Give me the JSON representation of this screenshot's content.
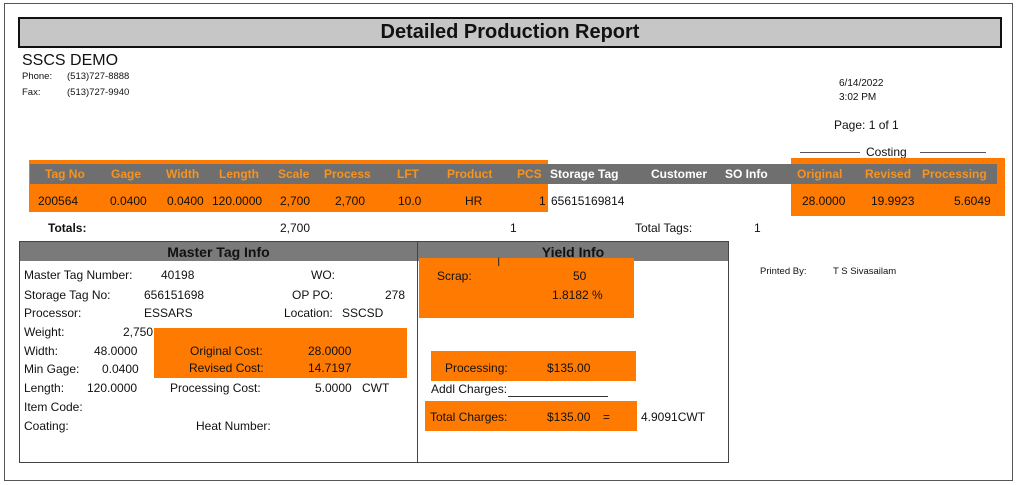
{
  "report": {
    "title": "Detailed Production Report",
    "company": "SSCS DEMO",
    "phone_label": "Phone:",
    "phone": "(513)727-8888",
    "fax_label": "Fax:",
    "fax": "(513)727-9940",
    "date": "6/14/2022",
    "time": "3:02 PM",
    "page": "Page: 1 of 1"
  },
  "costing_label": "Costing",
  "columns": {
    "tag_no": "Tag No",
    "gage": "Gage",
    "width": "Width",
    "length": "Length",
    "scale": "Scale",
    "process": "Process",
    "lft": "LFT",
    "product": "Product",
    "pcs": "PCS",
    "storage_tag": "Storage Tag",
    "customer": "Customer",
    "so_info": "SO Info",
    "original": "Original",
    "revised": "Revised",
    "processing": "Processing"
  },
  "row": {
    "tag_no": "200564",
    "gage": "0.0400",
    "width": "0.0400",
    "length": "120.0000",
    "scale": "2,700",
    "process": "2,700",
    "lft": "10.0",
    "product": "HR",
    "pcs": "1",
    "storage_tag": "65615169814",
    "original": "28.0000",
    "revised": "19.9923",
    "processing": "5.6049"
  },
  "totals": {
    "label": "Totals:",
    "scale": "2,700",
    "pcs": "1",
    "tags_label": "Total Tags:",
    "tags": "1"
  },
  "master": {
    "header": "Master Tag Info",
    "tag_number_label": "Master Tag Number:",
    "tag_number": "40198",
    "wo_label": "WO:",
    "storage_label": "Storage Tag No:",
    "storage": "656151698",
    "op_po_label": "OP PO:",
    "op_po": "278",
    "processor_label": "Processor:",
    "processor": "ESSARS",
    "location_label": "Location:",
    "location": "SSCSD",
    "weight_label": "Weight:",
    "weight": "2,750",
    "width_label": "Width:",
    "width": "48.0000",
    "min_gage_label": "Min Gage:",
    "min_gage": "0.0400",
    "length_label": "Length:",
    "length": "120.0000",
    "item_code_label": "Item Code:",
    "coating_label": "Coating:",
    "heat_label": "Heat Number:",
    "original_cost_label": "Original Cost:",
    "original_cost": "28.0000",
    "revised_cost_label": "Revised Cost:",
    "revised_cost": "14.7197",
    "processing_cost_label": "Processing Cost:",
    "processing_cost": "5.0000",
    "processing_cost_unit": "CWT"
  },
  "yield": {
    "header": "Yield Info",
    "scrap_label": "Scrap:",
    "scrap": "50",
    "scrap_pct": "1.8182 %",
    "processing_label": "Processing:",
    "processing": "$135.00",
    "addl_label": "Addl Charges:",
    "total_label": "Total Charges:",
    "total": "$135.00",
    "eq": "=",
    "per_cwt": "4.9091CWT"
  },
  "printed_by_label": "Printed By:",
  "printed_by": "T S Sivasailam",
  "colors": {
    "highlight": "#ff7a00",
    "header_gray": "#6f6f6f",
    "title_gray": "#c6c6c6"
  }
}
